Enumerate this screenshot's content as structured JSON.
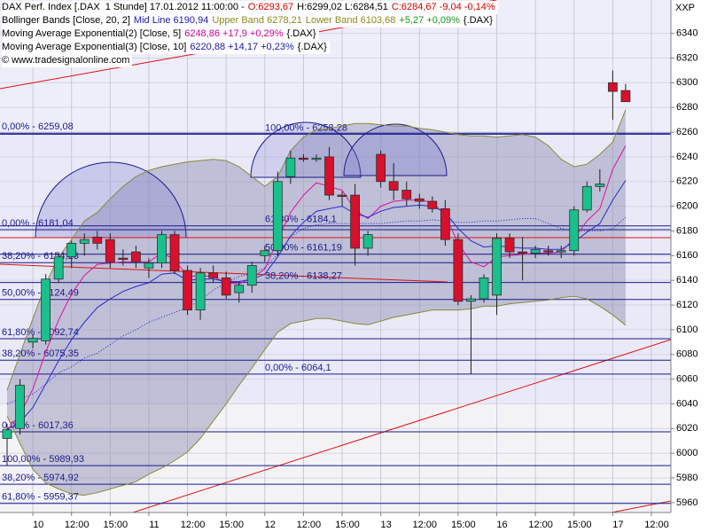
{
  "chart_data": {
    "type": "candlestick",
    "corner_label": "XXP",
    "legend": [
      [
        {
          "text": "DAX Perf. Index [.DAX  1 Stunde] 17.01.2012 11:00:00 -",
          "color": "#000000"
        },
        {
          "text": "O:6293,67",
          "color": "#d00000"
        },
        {
          "text": "H:6299,02 L:6284,51",
          "color": "#000000"
        },
        {
          "text": "C:6284,67 -9,04 -0,14%",
          "color": "#d00000"
        }
      ],
      [
        {
          "text": "Bollinger Bands [Close, 20, 2]",
          "color": "#000000"
        },
        {
          "text": "Mid Line 6190,94",
          "color": "#1a1aa0"
        },
        {
          "text": "Upper Band 6278,21",
          "color": "#8a8a20"
        },
        {
          "text": "Lower Band 6103,68",
          "color": "#8a8a20"
        },
        {
          "text": "+5,27 +0,09%",
          "color": "#1a9a1a"
        },
        {
          "text": "{.DAX}",
          "color": "#000000"
        }
      ],
      [
        {
          "text": "Moving Average Exponential(2) [Close, 5]",
          "color": "#000000"
        },
        {
          "text": "6248,86 +17,9 +0,29%",
          "color": "#d0009a"
        },
        {
          "text": "{.DAX}",
          "color": "#000000"
        }
      ],
      [
        {
          "text": "Moving Average Exponential(3) [Close, 10]",
          "color": "#000000"
        },
        {
          "text": "6220,88 +14,17 +0,23%",
          "color": "#1a1aa0"
        },
        {
          "text": "{.DAX}",
          "color": "#000000"
        }
      ],
      [
        {
          "text": "© www.tradesignalonline.com",
          "color": "#000000"
        }
      ]
    ],
    "categories": [
      null,
      null,
      "10",
      null,
      null,
      "12:00",
      null,
      null,
      "15:00",
      null,
      null,
      "11",
      null,
      null,
      "12:00",
      null,
      null,
      "15:00",
      null,
      null,
      "12",
      null,
      null,
      "12:00",
      null,
      null,
      "15:00",
      null,
      null,
      "13",
      null,
      null,
      "12:00",
      null,
      null,
      "15:00",
      null,
      null,
      "16",
      null,
      null,
      "12:00",
      null,
      null,
      "15:00",
      null,
      null,
      "17",
      null,
      null,
      "12:00"
    ],
    "candles": [
      [
        6012,
        6024,
        5990,
        6019
      ],
      [
        6020,
        6060,
        6015,
        6055
      ],
      [
        6090,
        6096,
        6085,
        6093
      ],
      [
        6091,
        6145,
        6088,
        6141
      ],
      [
        6141,
        6162,
        6138,
        6159
      ],
      [
        6159,
        6172,
        6150,
        6170
      ],
      [
        6170,
        6178,
        6160,
        6173
      ],
      [
        6175,
        6180,
        6165,
        6170
      ],
      [
        6173,
        6178,
        6150,
        6155
      ],
      [
        6158,
        6165,
        6152,
        6157
      ],
      [
        6163,
        6168,
        6150,
        6155
      ],
      [
        6150,
        6158,
        6142,
        6154
      ],
      [
        6154,
        6180,
        6150,
        6177
      ],
      [
        6177,
        6180,
        6145,
        6148
      ],
      [
        6148,
        6152,
        6112,
        6116
      ],
      [
        6116,
        6150,
        6108,
        6146
      ],
      [
        6146,
        6152,
        6138,
        6142
      ],
      [
        6142,
        6147,
        6125,
        6128
      ],
      [
        6130,
        6138,
        6122,
        6136
      ],
      [
        6136,
        6155,
        6130,
        6152
      ],
      [
        6160,
        6168,
        6155,
        6164
      ],
      [
        6164,
        6228,
        6160,
        6220
      ],
      [
        6224,
        6245,
        6218,
        6239
      ],
      [
        6239,
        6242,
        6236,
        6238
      ],
      [
        6238,
        6242,
        6236,
        6239
      ],
      [
        6240,
        6248,
        6205,
        6209
      ],
      [
        6209,
        6212,
        6200,
        6208
      ],
      [
        6209,
        6218,
        6152,
        6166
      ],
      [
        6166,
        6180,
        6160,
        6177
      ],
      [
        6242,
        6245,
        6215,
        6220
      ],
      [
        6220,
        6235,
        6205,
        6213
      ],
      [
        6213,
        6220,
        6200,
        6206
      ],
      [
        6206,
        6210,
        6198,
        6204
      ],
      [
        6204,
        6208,
        6195,
        6198
      ],
      [
        6198,
        6205,
        6168,
        6173
      ],
      [
        6173,
        6178,
        6120,
        6123
      ],
      [
        6123,
        6128,
        6064,
        6125
      ],
      [
        6125,
        6145,
        6122,
        6142
      ],
      [
        6128,
        6178,
        6112,
        6174
      ],
      [
        6174,
        6178,
        6158,
        6163
      ],
      [
        6163,
        6175,
        6140,
        6162
      ],
      [
        6162,
        6168,
        6158,
        6165
      ],
      [
        6164,
        6168,
        6160,
        6163
      ],
      [
        6163,
        6168,
        6158,
        6164
      ],
      [
        6164,
        6200,
        6160,
        6197
      ],
      [
        6197,
        6220,
        6195,
        6216
      ],
      [
        6216,
        6230,
        6212,
        6218
      ],
      [
        6300,
        6310,
        6270,
        6293
      ],
      [
        6293.67,
        6299.02,
        6284.51,
        6284.67
      ],
      null,
      null
    ],
    "up_color": "#19c08c",
    "down_color": "#d8102c",
    "band": {
      "upper_series": 0,
      "lower_series": 1,
      "fill": "#8c8cb0",
      "stroke": "#8a8a3a"
    },
    "series": [
      {
        "name": "Upper Band",
        "color": "#8a8a3a",
        "style": "band",
        "values": [
          6051,
          6080,
          6109,
          6137,
          6159,
          6173,
          6188,
          6195,
          6206,
          6216,
          6224,
          6229,
          6232,
          6234,
          6236,
          6237,
          6238,
          6237,
          6232,
          6224,
          6216,
          6224,
          6245,
          6256,
          6262,
          6263,
          6265,
          6267,
          6267,
          6266,
          6265,
          6265,
          6263,
          6262,
          6260,
          6258,
          6257,
          6257,
          6256,
          6257,
          6258,
          6256,
          6249,
          6238,
          6232,
          6234,
          6242,
          6252,
          6278.21,
          null,
          null
        ]
      },
      {
        "name": "Lower Band",
        "color": "#8a8a3a",
        "style": "band",
        "values": [
          6030,
          6008,
          5987,
          5976,
          5971,
          5967,
          5966,
          5968,
          5971,
          5974,
          5977,
          5983,
          5988,
          5994,
          6001,
          6012,
          6026,
          6040,
          6055,
          6069,
          6084,
          6098,
          6105,
          6107,
          6109,
          6109,
          6107,
          6105,
          6104,
          6107,
          6110,
          6112,
          6114,
          6116,
          6116,
          6116,
          6117,
          6119,
          6119,
          6121,
          6122,
          6123,
          6124,
          6126,
          6127,
          6125,
          6119,
          6112,
          6103.68,
          null,
          null
        ]
      },
      {
        "name": "Mid Line",
        "color": "#2020c0",
        "style": "dotted",
        "values": [
          6040,
          6044,
          6048,
          6056,
          6065,
          6070,
          6077,
          6081,
          6088,
          6095,
          6100,
          6106,
          6110,
          6114,
          6118,
          6124,
          6132,
          6138,
          6143,
          6146,
          6150,
          6161,
          6175,
          6182,
          6185,
          6186,
          6186,
          6186,
          6186,
          6186,
          6187,
          6188,
          6188,
          6189,
          6188,
          6187,
          6187,
          6188,
          6188,
          6189,
          6190,
          6190,
          6186,
          6182,
          6180,
          6180,
          6180,
          6182,
          6190.94,
          null,
          null
        ]
      },
      {
        "name": "EMA 5",
        "color": "#e0109a",
        "style": "solid",
        "values": [
          6019,
          6031,
          6052,
          6082,
          6108,
          6129,
          6144,
          6153,
          6154,
          6155,
          6155,
          6155,
          6162,
          6157,
          6143,
          6144,
          6143,
          6138,
          6137,
          6142,
          6149,
          6173,
          6195,
          6209,
          6219,
          6216,
          6213,
          6197,
          6190,
          6200,
          6204,
          6205,
          6205,
          6203,
          6193,
          6170,
          6155,
          6151,
          6159,
          6160,
          6161,
          6162,
          6162,
          6163,
          6174,
          6188,
          6198,
          6230,
          6248.86,
          null,
          null
        ]
      },
      {
        "name": "EMA 10",
        "color": "#2a2ad0",
        "style": "solid",
        "values": [
          6019,
          6025,
          6037,
          6056,
          6075,
          6092,
          6106,
          6118,
          6125,
          6131,
          6135,
          6138,
          6145,
          6146,
          6140,
          6141,
          6141,
          6139,
          6139,
          6141,
          6145,
          6159,
          6176,
          6187,
          6196,
          6198,
          6200,
          6194,
          6191,
          6196,
          6199,
          6200,
          6201,
          6200,
          6195,
          6182,
          6172,
          6167,
          6168,
          6167,
          6166,
          6166,
          6165,
          6165,
          6171,
          6179,
          6186,
          6205,
          6220.88,
          null,
          null
        ]
      }
    ],
    "fib_color": "#1a1a8c",
    "fib_sets": [
      {
        "levels": [
          {
            "value": 6259.08,
            "label": "0,00% - 6259,08"
          },
          {
            "value": 6181.04,
            "label": "0,00% - 6181,04"
          },
          {
            "value": 6154.25,
            "label": "38,20% - 6154,25"
          },
          {
            "value": 6124.49,
            "label": "50,00% - 6124,49"
          },
          {
            "value": 6092.74,
            "label": "61,80% - 6092,74"
          },
          {
            "value": 6075.35,
            "label": "38,20% - 6075,35"
          },
          {
            "value": 6017.36,
            "label": "0,00% - 6017,36"
          },
          {
            "value": 5989.93,
            "label": "100,00% - 5989,93"
          },
          {
            "value": 5974.92,
            "label": "38,20% - 5974,92"
          },
          {
            "value": 5959.37,
            "label": "61,80% - 5959,37"
          }
        ]
      },
      {
        "levels": [
          {
            "value": 6258.28,
            "label": "100,00% - 6258,28"
          },
          {
            "value": 6184.1,
            "label": "61,80% - 6184,1"
          },
          {
            "value": 6161.19,
            "label": "50,00% - 6161,19"
          },
          {
            "value": 6138.27,
            "label": "38,20% - 6138,27"
          },
          {
            "value": 6064.1,
            "label": "0,00% - 6064,1"
          }
        ]
      }
    ],
    "ylim": [
      5952,
      6367
    ],
    "yticks": [
      5960,
      5980,
      6000,
      6020,
      6040,
      6060,
      6080,
      6100,
      6120,
      6140,
      6160,
      6180,
      6200,
      6220,
      6240,
      6260,
      6280,
      6300,
      6320,
      6340
    ],
    "grid": true
  }
}
